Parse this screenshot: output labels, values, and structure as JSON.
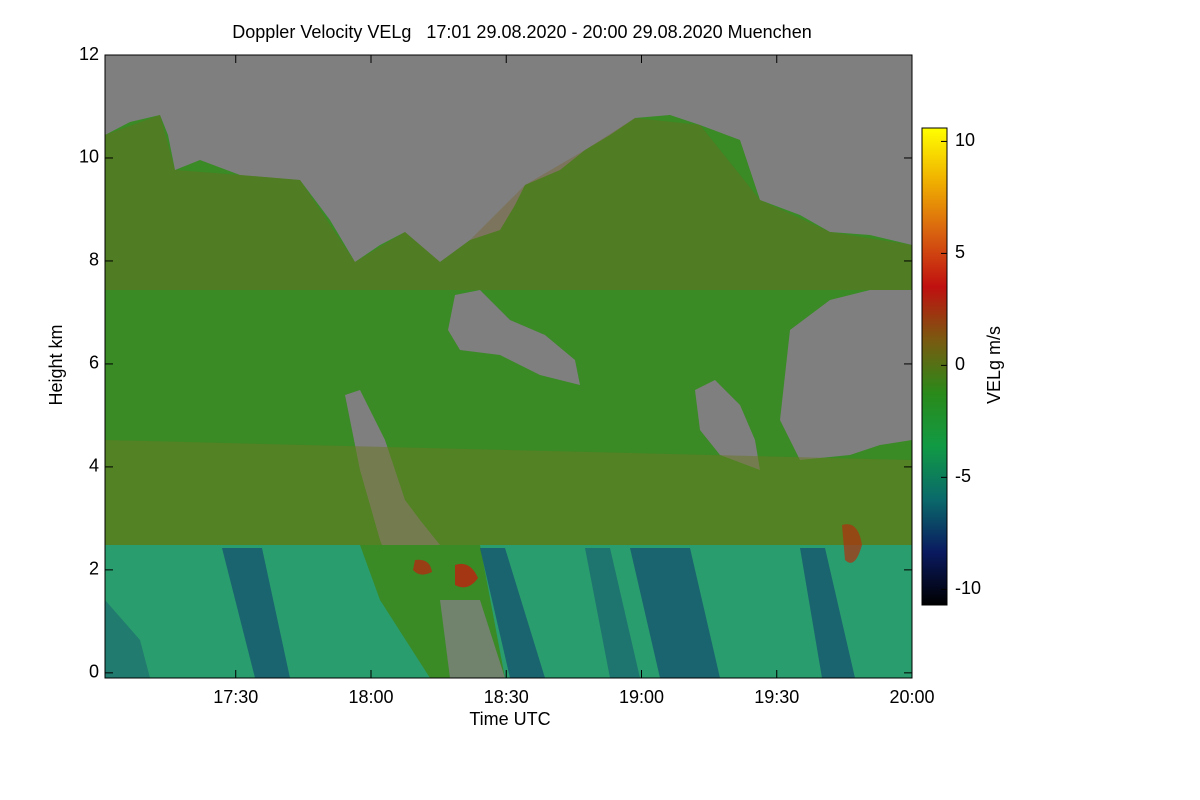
{
  "chart_data": {
    "type": "heatmap",
    "title": "Doppler Velocity VELg   17:01 29.08.2020 - 20:00 29.08.2020 Muenchen",
    "x_label": "Time UTC",
    "y_label": "Height km",
    "xlim": [
      17.0167,
      20.0
    ],
    "xticks": [
      {
        "value": 17.5,
        "label": "17:30"
      },
      {
        "value": 18.0,
        "label": "18:00"
      },
      {
        "value": 18.5,
        "label": "18:30"
      },
      {
        "value": 19.0,
        "label": "19:00"
      },
      {
        "value": 19.5,
        "label": "19:30"
      },
      {
        "value": 20.0,
        "label": "20:00"
      }
    ],
    "ylim": [
      -0.1,
      12
    ],
    "yticks": [
      0,
      2,
      4,
      6,
      8,
      10,
      12
    ],
    "colorbar": {
      "label": "VELg m/s",
      "clim": [
        -10.7,
        10.6
      ],
      "ticks": [
        -10,
        -5,
        0,
        5,
        10
      ],
      "colormap": [
        "#000000",
        "#0a1a60",
        "#0a6a6a",
        "#119a44",
        "#2a8a1a",
        "#7a5a10",
        "#c01010",
        "#d86010",
        "#f0b000",
        "#ffff00"
      ]
    }
  }
}
